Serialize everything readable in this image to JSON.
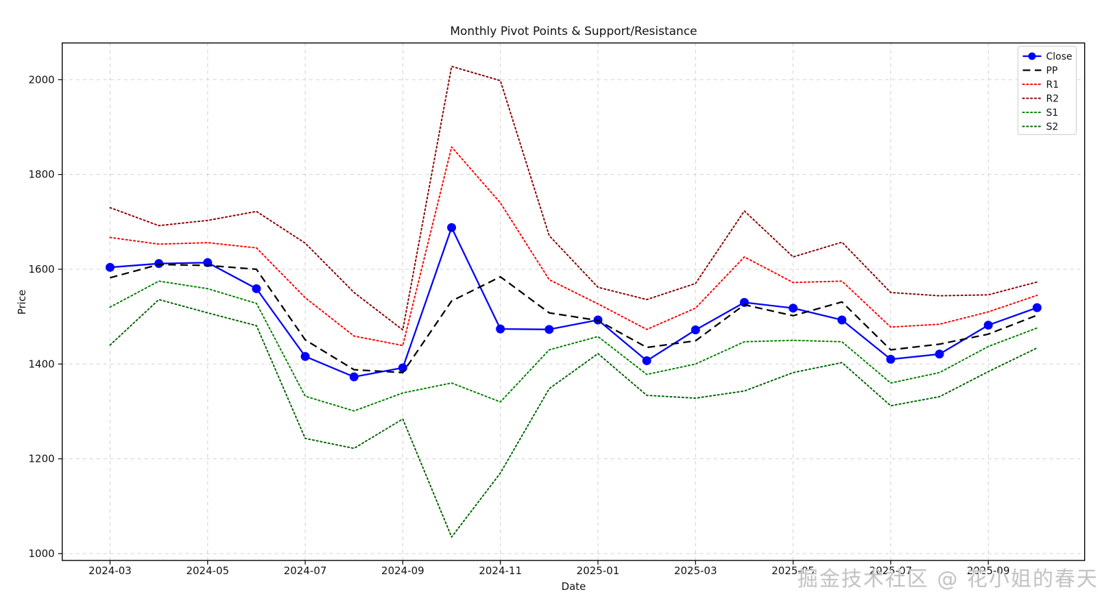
{
  "chart": {
    "title": "Monthly Pivot Points & Support/Resistance",
    "xlabel": "Date",
    "ylabel": "Price",
    "watermark": "掘金技术社区 @ 花小姐的春天",
    "ytick_labels": [
      "1000",
      "1200",
      "1400",
      "1600",
      "1800",
      "2000"
    ],
    "xtick_labels": [
      "2024-03",
      "2024-05",
      "2024-07",
      "2024-09",
      "2024-11",
      "2025-01",
      "2025-03",
      "2025-05",
      "2025-07",
      "2025-09"
    ],
    "colors": {
      "close": "#0000ff",
      "pp": "#000000",
      "r1": "#ff0000",
      "r2": "#8b0000",
      "s1": "#008000",
      "s2": "#006400",
      "grid": "#d0d0d0",
      "spine": "#000000",
      "legend_border": "#cccccc",
      "watermark": "#c3c3c3"
    }
  },
  "chart_data": {
    "type": "line",
    "title": "Monthly Pivot Points & Support/Resistance",
    "xlabel": "Date",
    "ylabel": "Price",
    "x": [
      "2024-03",
      "2024-04",
      "2024-05",
      "2024-06",
      "2024-07",
      "2024-08",
      "2024-09",
      "2024-10",
      "2024-11",
      "2024-12",
      "2025-01",
      "2025-02",
      "2025-03",
      "2025-04",
      "2025-05",
      "2025-06",
      "2025-07",
      "2025-08",
      "2025-09",
      "2025-10"
    ],
    "xticks_shown": [
      "2024-03",
      "2024-05",
      "2024-07",
      "2024-09",
      "2024-11",
      "2025-01",
      "2025-03",
      "2025-05",
      "2025-07",
      "2025-09"
    ],
    "yticks": [
      1000,
      1200,
      1400,
      1600,
      1800,
      2000
    ],
    "ylim": [
      985.5,
      2077.5
    ],
    "grid": true,
    "legend_position": "upper right",
    "series": [
      {
        "name": "Close",
        "color": "#0000ff",
        "style": "solid",
        "marker": "circle",
        "values": [
          1604,
          1612,
          1614,
          1559,
          1416,
          1373,
          1392,
          1688,
          1474,
          1473,
          1493,
          1407,
          1472,
          1530,
          1518,
          1493,
          1410,
          1421,
          1482,
          1519
        ]
      },
      {
        "name": "PP",
        "color": "#000000",
        "style": "dashed",
        "marker": "none",
        "values": [
          1582,
          1610,
          1608,
          1600,
          1451,
          1388,
          1382,
          1533,
          1584,
          1508,
          1492,
          1435,
          1449,
          1525,
          1502,
          1531,
          1430,
          1442,
          1463,
          1503
        ]
      },
      {
        "name": "R1",
        "color": "#ff0000",
        "style": "dotted",
        "marker": "none",
        "values": [
          1667,
          1653,
          1656,
          1645,
          1540,
          1459,
          1439,
          1858,
          1740,
          1578,
          1527,
          1473,
          1518,
          1626,
          1572,
          1575,
          1478,
          1484,
          1510,
          1545
        ]
      },
      {
        "name": "R2",
        "color": "#8b0000",
        "style": "dotted",
        "marker": "none",
        "values": [
          1730,
          1692,
          1703,
          1722,
          1655,
          1551,
          1472,
          2028,
          1998,
          1671,
          1562,
          1536,
          1570,
          1723,
          1626,
          1657,
          1551,
          1544,
          1546,
          1573
        ]
      },
      {
        "name": "S1",
        "color": "#008000",
        "style": "dotted",
        "marker": "none",
        "values": [
          1520,
          1575,
          1559,
          1528,
          1332,
          1301,
          1339,
          1360,
          1320,
          1430,
          1458,
          1378,
          1400,
          1447,
          1450,
          1447,
          1360,
          1382,
          1437,
          1476
        ]
      },
      {
        "name": "S2",
        "color": "#006400",
        "style": "dotted",
        "marker": "none",
        "values": [
          1440,
          1536,
          1508,
          1481,
          1243,
          1222,
          1284,
          1035,
          1170,
          1348,
          1422,
          1334,
          1328,
          1343,
          1382,
          1403,
          1312,
          1331,
          1384,
          1434
        ]
      }
    ]
  }
}
